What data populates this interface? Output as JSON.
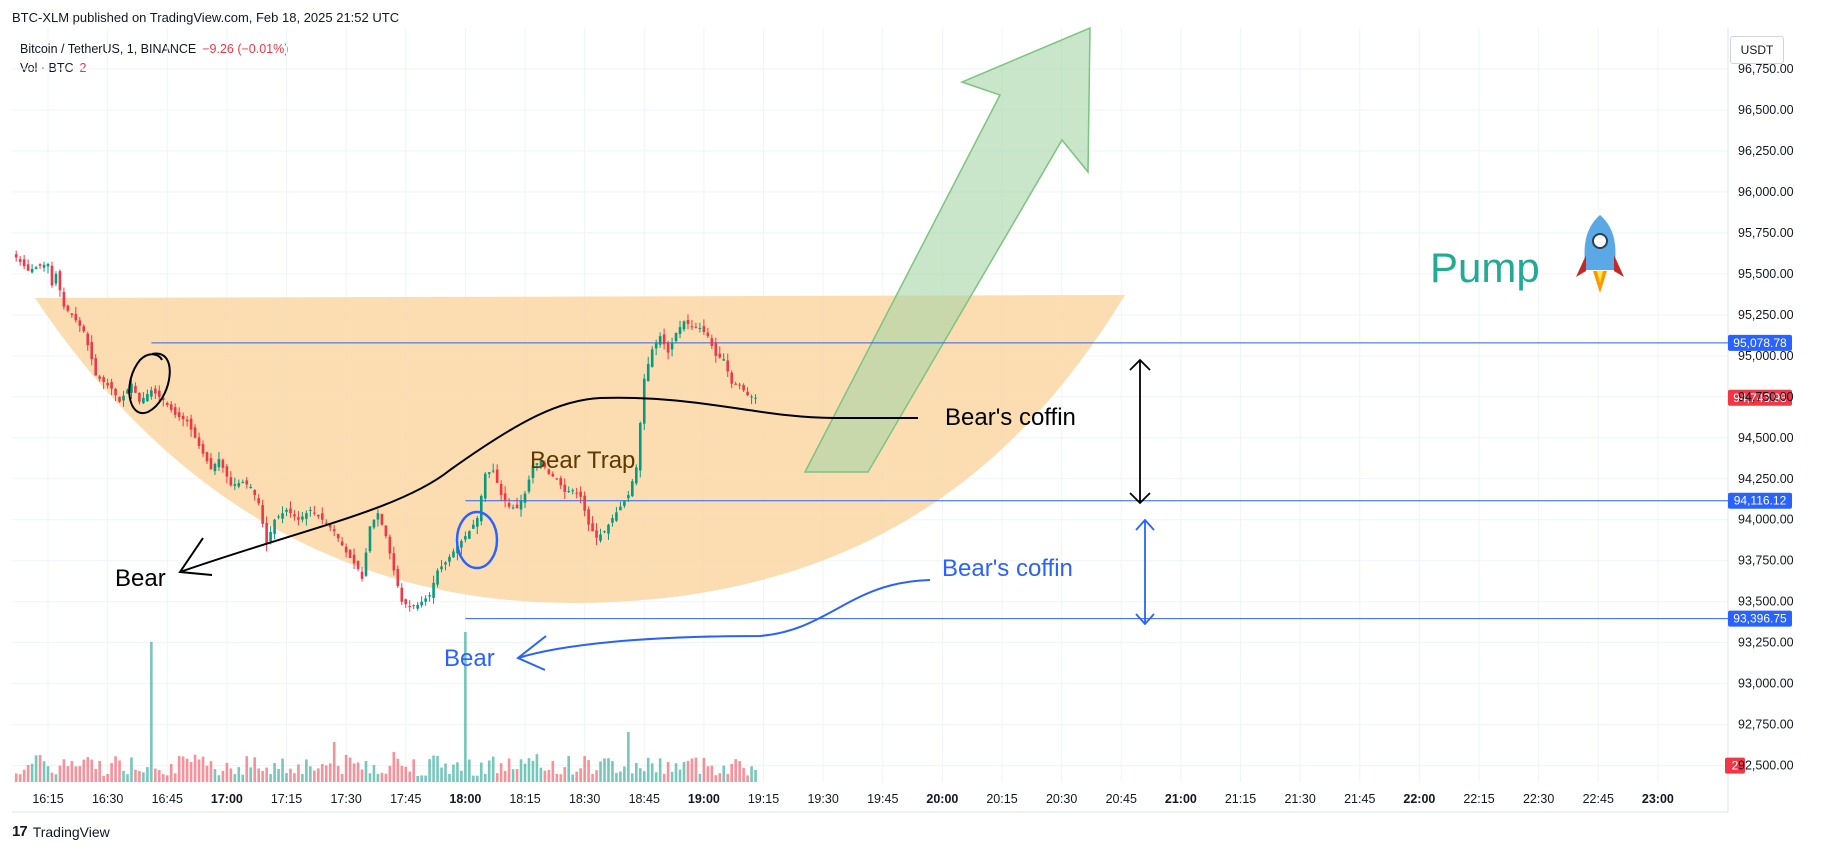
{
  "header": {
    "published": "BTC-XLM published on TradingView.com, Feb 18, 2025 21:52 UTC"
  },
  "legend": {
    "symbol": "Bitcoin / TetherUS, 1, BINANCE",
    "change": "−9.26 (−0.01%)",
    "volume_label": "Vol · BTC",
    "volume_value": "2"
  },
  "currency_button": "USDT",
  "footer": {
    "logo": "17",
    "brand": "TradingView"
  },
  "colors": {
    "up": "#089981",
    "down": "#f23645",
    "hline": "#2962ff",
    "cup_fill": "#fbd7a5",
    "arrow_fill": "#a5d6a7",
    "blue_ann": "#2962ff",
    "pump": "#22ab94"
  },
  "chart_data": {
    "type": "candlestick",
    "symbol": "Bitcoin / TetherUS",
    "interval": "1",
    "ylim": [
      92400,
      97000
    ],
    "y_ticks": [
      "96,750.00",
      "96,500.00",
      "96,250.00",
      "96,000.00",
      "95,750.00",
      "95,500.00",
      "95,250.00",
      "95,000.00",
      "94,750.00",
      "94,500.00",
      "94,250.00",
      "94,000.00",
      "93,750.00",
      "93,500.00",
      "93,250.00",
      "93,000.00",
      "92,750.00",
      "92,500.00"
    ],
    "y_tick_values": [
      96750,
      96500,
      96250,
      96000,
      95750,
      95500,
      95250,
      95000,
      94750,
      94500,
      94250,
      94000,
      93750,
      93500,
      93250,
      93000,
      92750,
      92500
    ],
    "x_ticks": [
      {
        "label": "16:15",
        "min": 975
      },
      {
        "label": "16:30",
        "min": 990
      },
      {
        "label": "16:45",
        "min": 1005
      },
      {
        "label": "17:00",
        "min": 1020,
        "bold": true
      },
      {
        "label": "17:15",
        "min": 1035
      },
      {
        "label": "17:30",
        "min": 1050
      },
      {
        "label": "17:45",
        "min": 1065
      },
      {
        "label": "18:00",
        "min": 1080,
        "bold": true
      },
      {
        "label": "18:15",
        "min": 1095
      },
      {
        "label": "18:30",
        "min": 1110
      },
      {
        "label": "18:45",
        "min": 1125
      },
      {
        "label": "19:00",
        "min": 1140,
        "bold": true
      },
      {
        "label": "19:15",
        "min": 1155
      },
      {
        "label": "19:30",
        "min": 1170
      },
      {
        "label": "19:45",
        "min": 1185
      },
      {
        "label": "20:00",
        "min": 1200,
        "bold": true
      },
      {
        "label": "20:15",
        "min": 1215
      },
      {
        "label": "20:30",
        "min": 1230
      },
      {
        "label": "20:45",
        "min": 1245
      },
      {
        "label": "21:00",
        "min": 1260,
        "bold": true
      },
      {
        "label": "21:15",
        "min": 1275
      },
      {
        "label": "21:30",
        "min": 1290
      },
      {
        "label": "21:45",
        "min": 1305
      },
      {
        "label": "22:00",
        "min": 1320,
        "bold": true
      },
      {
        "label": "22:15",
        "min": 1335
      },
      {
        "label": "22:30",
        "min": 1350
      },
      {
        "label": "22:45",
        "min": 1365
      },
      {
        "label": "23:00",
        "min": 1380,
        "bold": true
      }
    ],
    "start_time": "16:07",
    "close_keypoints": [
      [
        0,
        95600
      ],
      [
        3,
        95520
      ],
      [
        6,
        95550
      ],
      [
        8,
        95560
      ],
      [
        9,
        95430
      ],
      [
        10,
        95500
      ],
      [
        12,
        95300
      ],
      [
        14,
        95250
      ],
      [
        17,
        95150
      ],
      [
        19,
        94980
      ],
      [
        20,
        94880
      ],
      [
        24,
        94800
      ],
      [
        26,
        94720
      ],
      [
        29,
        94830
      ],
      [
        31,
        94720
      ],
      [
        34,
        94790
      ],
      [
        37,
        94730
      ],
      [
        40,
        94640
      ],
      [
        43,
        94600
      ],
      [
        46,
        94450
      ],
      [
        49,
        94310
      ],
      [
        51,
        94370
      ],
      [
        54,
        94210
      ],
      [
        57,
        94230
      ],
      [
        59,
        94200
      ],
      [
        61,
        94100
      ],
      [
        63,
        93850
      ],
      [
        65,
        94000
      ],
      [
        68,
        94060
      ],
      [
        71,
        94000
      ],
      [
        74,
        94060
      ],
      [
        77,
        94000
      ],
      [
        80,
        93930
      ],
      [
        83,
        93800
      ],
      [
        86,
        93700
      ],
      [
        87,
        93640
      ],
      [
        89,
        93960
      ],
      [
        91,
        94040
      ],
      [
        93,
        93900
      ],
      [
        95,
        93690
      ],
      [
        97,
        93500
      ],
      [
        99,
        93470
      ],
      [
        101,
        93480
      ],
      [
        104,
        93540
      ],
      [
        106,
        93690
      ],
      [
        108,
        93740
      ],
      [
        111,
        93840
      ],
      [
        114,
        93930
      ],
      [
        116,
        94010
      ],
      [
        118,
        94280
      ],
      [
        120,
        94300
      ],
      [
        122,
        94150
      ],
      [
        124,
        94080
      ],
      [
        126,
        94070
      ],
      [
        128,
        94160
      ],
      [
        130,
        94330
      ],
      [
        132,
        94360
      ],
      [
        134,
        94280
      ],
      [
        136,
        94250
      ],
      [
        138,
        94170
      ],
      [
        140,
        94180
      ],
      [
        142,
        94140
      ],
      [
        144,
        93970
      ],
      [
        146,
        93890
      ],
      [
        148,
        93930
      ],
      [
        150,
        94010
      ],
      [
        152,
        94080
      ],
      [
        154,
        94150
      ],
      [
        156,
        94320
      ],
      [
        158,
        94860
      ],
      [
        160,
        95040
      ],
      [
        162,
        95120
      ],
      [
        164,
        95020
      ],
      [
        166,
        95140
      ],
      [
        168,
        95210
      ],
      [
        170,
        95180
      ],
      [
        172,
        95170
      ],
      [
        174,
        95120
      ],
      [
        176,
        95000
      ],
      [
        178,
        94980
      ],
      [
        180,
        94830
      ],
      [
        182,
        94820
      ],
      [
        184,
        94760
      ],
      [
        186,
        94744
      ]
    ],
    "horizontal_levels": [
      {
        "price": 95078.78,
        "label": "95,078.78",
        "start_min": 1001
      },
      {
        "price": 94116.12,
        "label": "94,116.12",
        "start_min": 1080
      },
      {
        "price": 93396.75,
        "label": "93,396.75",
        "start_min": 1080
      }
    ],
    "last_price": {
      "price": 94743.98,
      "label": "94,743.98"
    },
    "volume_last_label": "2",
    "volume_spikes": [
      {
        "min": 1001,
        "h": 140
      },
      {
        "min": 1080,
        "h": 150
      },
      {
        "min": 1062,
        "h": 30
      },
      {
        "min": 1121,
        "h": 50
      },
      {
        "min": 1047,
        "h": 40
      },
      {
        "min": 1256,
        "h": 35
      }
    ]
  },
  "annotations": {
    "bear_trap": "Bear Trap",
    "bears_coffin_black": "Bear's coffin",
    "bear_black": "Bear",
    "bears_coffin_blue": "Bear's coffin",
    "bear_blue": "Bear",
    "pump": "Pump"
  }
}
